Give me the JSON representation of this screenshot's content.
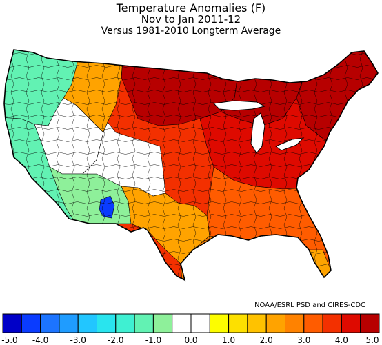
{
  "header": {
    "title": "Temperature Anomalies (F)",
    "period": "Nov to Jan 2011-12",
    "baseline": "Versus 1981-2010 Longterm Average"
  },
  "credit": "NOAA/ESRL PSD and CIRES-CDC",
  "legend": {
    "min": -5.0,
    "max": 5.0,
    "step": 0.5,
    "tick_labels": [
      "-5.0",
      "-4.0",
      "-3.0",
      "-2.0",
      "-1.0",
      "0.0",
      "1.0",
      "2.0",
      "3.0",
      "4.0",
      "5.0"
    ],
    "colors": [
      "#0000c8",
      "#0a3cff",
      "#1c74ff",
      "#1f9cff",
      "#22c6ff",
      "#29e4ee",
      "#3ff0d2",
      "#62f2b3",
      "#8ef09a",
      "#ffffff",
      "#ffffff",
      "#fdfd00",
      "#fde000",
      "#ffc200",
      "#ffa300",
      "#ff8200",
      "#ff5c00",
      "#f33000",
      "#de0a00",
      "#b70000"
    ]
  },
  "map": {
    "regions": [
      {
        "name": "pacific-northwest",
        "anomaly": -1.5
      },
      {
        "name": "california-coast",
        "anomaly": -1.3
      },
      {
        "name": "great-basin",
        "anomaly": -0.3
      },
      {
        "name": "northern-rockies",
        "anomaly": 2.2
      },
      {
        "name": "southwest",
        "anomaly": -1.0
      },
      {
        "name": "four-corners",
        "anomaly": -0.2
      },
      {
        "name": "arizona-east",
        "anomaly": -4.4
      },
      {
        "name": "southern-plains",
        "anomaly": 2.0
      },
      {
        "name": "texas-coast",
        "anomaly": 2.6
      },
      {
        "name": "upper-midwest",
        "anomaly": 4.8
      },
      {
        "name": "great-lakes",
        "anomaly": 4.6
      },
      {
        "name": "northeast",
        "anomaly": 4.7
      },
      {
        "name": "central-plains",
        "anomaly": 3.6
      },
      {
        "name": "ohio-valley",
        "anomaly": 4.0
      },
      {
        "name": "southeast",
        "anomaly": 3.1
      },
      {
        "name": "florida",
        "anomaly": 2.3
      }
    ]
  }
}
